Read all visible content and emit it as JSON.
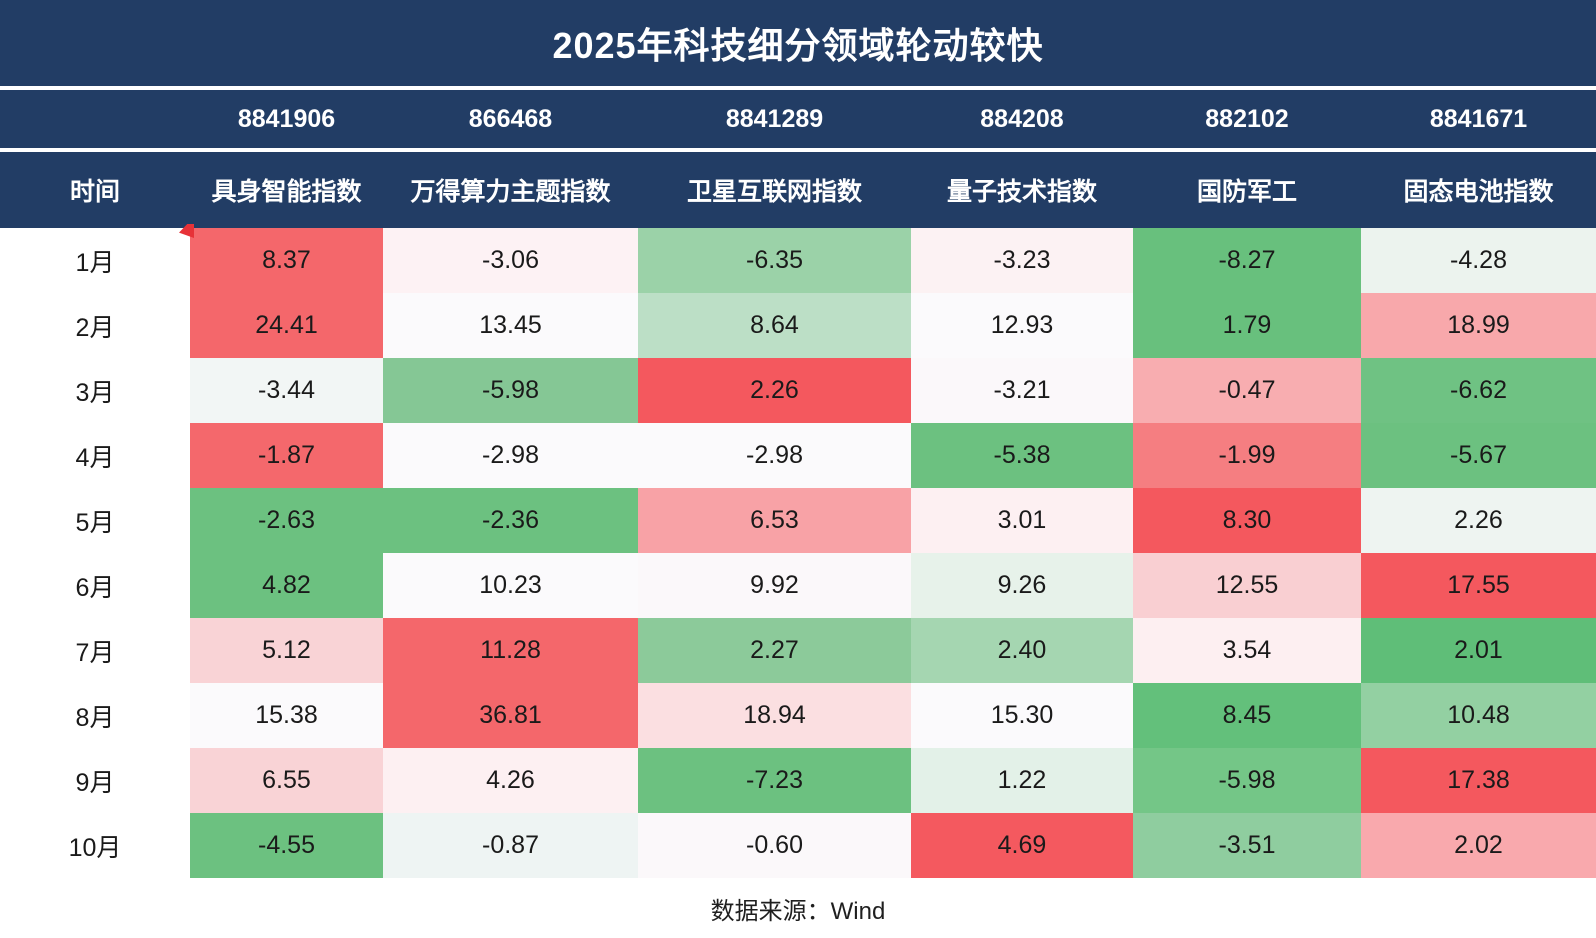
{
  "chart_data": {
    "type": "table",
    "title": "2025年科技细分领域轮动较快",
    "source_note": "数据来源：Wind",
    "row_header": "时间",
    "columns": [
      {
        "code": "8841906",
        "name": "具身智能指数"
      },
      {
        "code": "866468",
        "name": "万得算力主题指数"
      },
      {
        "code": "8841289",
        "name": "卫星互联网指数"
      },
      {
        "code": "884208",
        "name": "量子技术指数"
      },
      {
        "code": "882102",
        "name": "国防军工"
      },
      {
        "code": "8841671",
        "name": "固态电池指数"
      }
    ],
    "rows": [
      "1月",
      "2月",
      "3月",
      "4月",
      "5月",
      "6月",
      "7月",
      "8月",
      "9月",
      "10月"
    ],
    "values": [
      [
        8.37,
        -3.06,
        -6.35,
        -3.23,
        -8.27,
        -4.28
      ],
      [
        24.41,
        13.45,
        8.64,
        12.93,
        1.79,
        18.99
      ],
      [
        -3.44,
        -5.98,
        2.26,
        -3.21,
        -0.47,
        -6.62
      ],
      [
        -1.87,
        -2.98,
        -2.98,
        -5.38,
        -1.99,
        -5.67
      ],
      [
        -2.63,
        -2.36,
        6.53,
        3.01,
        8.3,
        2.26
      ],
      [
        4.82,
        10.23,
        9.92,
        9.26,
        12.55,
        17.55
      ],
      [
        5.12,
        11.28,
        2.27,
        2.4,
        3.54,
        2.01
      ],
      [
        15.38,
        36.81,
        18.94,
        15.3,
        8.45,
        10.48
      ],
      [
        6.55,
        4.26,
        -7.23,
        1.22,
        -5.98,
        17.38
      ],
      [
        -4.55,
        -0.87,
        -0.6,
        4.69,
        -3.51,
        2.02
      ]
    ],
    "cell_colors": [
      [
        "#f4676b",
        "#fdf2f4",
        "#9bd2a8",
        "#fcf2f3",
        "#68c07d",
        "#ecf3ee"
      ],
      [
        "#f4676b",
        "#fbfafc",
        "#bcdfc6",
        "#fbfafc",
        "#68c07d",
        "#f8a8ab"
      ],
      [
        "#f2f6f5",
        "#85c795",
        "#f4585e",
        "#fbf8fa",
        "#f8adb0",
        "#6fc283"
      ],
      [
        "#f4686c",
        "#fbfafc",
        "#fbfafc",
        "#6cc180",
        "#f57e81",
        "#6cc180"
      ],
      [
        "#6cc180",
        "#6cc180",
        "#f8a2a6",
        "#fdf0f2",
        "#f4585e",
        "#eef4f1"
      ],
      [
        "#6cc180",
        "#fbfafc",
        "#fbf8fa",
        "#e7f2ea",
        "#f9cfd2",
        "#f4585e"
      ],
      [
        "#f9d3d6",
        "#f4676b",
        "#8cca9a",
        "#a5d6b1",
        "#fdeff1",
        "#5fbe78"
      ],
      [
        "#fbfafc",
        "#f4676b",
        "#fbdfe1",
        "#fbfafc",
        "#63c07b",
        "#93d0a2"
      ],
      [
        "#f9d3d6",
        "#fdf0f2",
        "#6cc180",
        "#e3f1e8",
        "#74c687",
        "#f4585e"
      ],
      [
        "#6cc180",
        "#eef4f3",
        "#fbf8fa",
        "#f4595f",
        "#8fcd9f",
        "#f9a9ad"
      ]
    ],
    "layout_hints": {
      "header_background": "#223d65",
      "header_text_color": "#ffffff",
      "body_text_color": "#1a1a1a",
      "corner_marker_color": "#e73238",
      "grid": false,
      "legend": "none"
    }
  }
}
